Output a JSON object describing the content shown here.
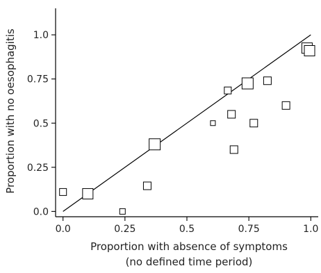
{
  "chart_data": {
    "type": "scatter",
    "xlabel": "Proportion with absence of symptoms",
    "xlabel_line2": "(no defined time period)",
    "ylabel": "Proportion with no oesophagitis",
    "xlim": [
      -0.03,
      1.03
    ],
    "ylim": [
      -0.03,
      1.15
    ],
    "x_ticks": [
      0.0,
      0.25,
      0.5,
      0.75,
      1.0
    ],
    "x_tick_labels": [
      "0.0",
      "0.25",
      "0.5",
      "0.75",
      "1.0"
    ],
    "y_ticks": [
      0.0,
      0.25,
      0.5,
      0.75,
      1.0
    ],
    "y_tick_labels": [
      "0.0",
      "0.25",
      "0.5",
      "0.75",
      "1.0"
    ],
    "marker": "open-square",
    "marker_size_note": "square size varies by study",
    "reference_line": {
      "x": [
        0,
        1
      ],
      "y": [
        0,
        1
      ]
    },
    "points": [
      {
        "x": 0.0,
        "y": 0.11,
        "size": 10
      },
      {
        "x": 0.1,
        "y": 0.1,
        "size": 15
      },
      {
        "x": 0.24,
        "y": 0.0,
        "size": 8
      },
      {
        "x": 0.34,
        "y": 0.145,
        "size": 11
      },
      {
        "x": 0.37,
        "y": 0.38,
        "size": 16
      },
      {
        "x": 0.605,
        "y": 0.5,
        "size": 7
      },
      {
        "x": 0.665,
        "y": 0.685,
        "size": 10
      },
      {
        "x": 0.68,
        "y": 0.55,
        "size": 11
      },
      {
        "x": 0.69,
        "y": 0.35,
        "size": 11
      },
      {
        "x": 0.745,
        "y": 0.725,
        "size": 16
      },
      {
        "x": 0.77,
        "y": 0.5,
        "size": 11
      },
      {
        "x": 0.825,
        "y": 0.74,
        "size": 11
      },
      {
        "x": 0.9,
        "y": 0.6,
        "size": 11
      },
      {
        "x": 0.985,
        "y": 0.925,
        "size": 15
      },
      {
        "x": 0.995,
        "y": 0.91,
        "size": 15
      }
    ]
  }
}
